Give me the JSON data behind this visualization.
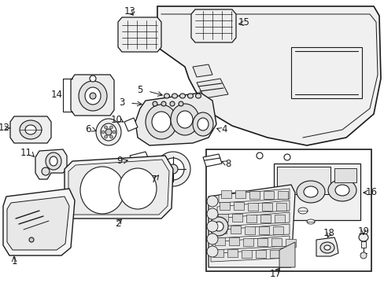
{
  "bg_color": "#ffffff",
  "line_color": "#1a1a1a",
  "fig_width": 4.89,
  "fig_height": 3.6,
  "dpi": 100,
  "fontsize": 8.5
}
